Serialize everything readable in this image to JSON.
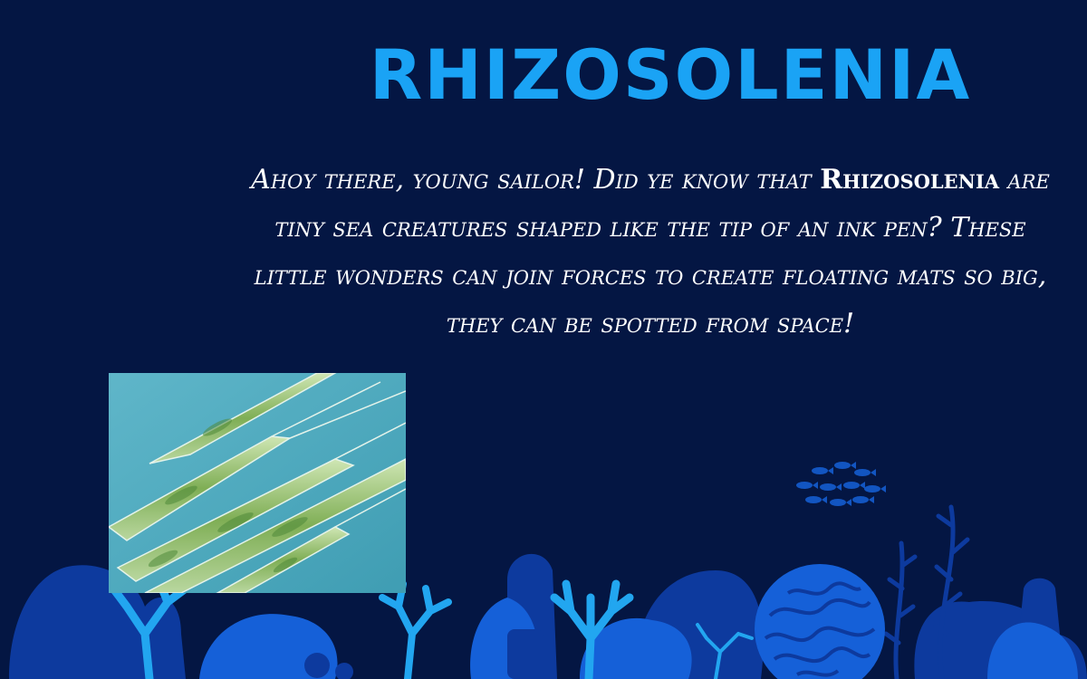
{
  "slide": {
    "title": "RHIZOSOLENIA",
    "paragraph": {
      "before": "Ahoy there, young sailor! Did ye know that ",
      "highlight": "Rhizosolenia",
      "after": " are tiny sea creatures shaped like the tip of an ink pen? These little wonders can join forces to create floating mats so big, they can be spotted from space!"
    },
    "photo_icon": "rhizosolenia-microscope-photo",
    "decor_icons": [
      "coral-reef-icon",
      "fish-school-icon"
    ],
    "colors": {
      "background": "#041643",
      "title": "#1aa3f5",
      "text": "#ffffff",
      "coral_dark": "#0d3a9e",
      "coral_mid": "#1560d8",
      "coral_light": "#22a6f0"
    }
  }
}
